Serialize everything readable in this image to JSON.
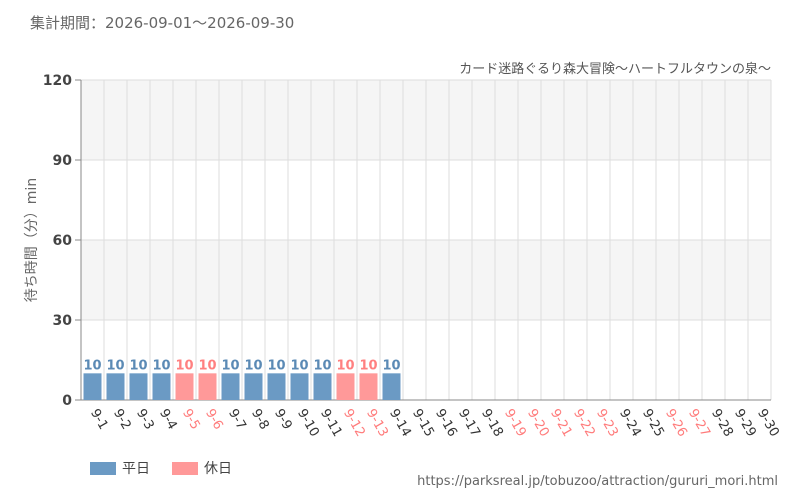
{
  "period_label": "集計期間：2026-09-01～2026-09-30",
  "source_url": "https://parksreal.jp/tobuzoo/attraction/gururi_mori.html",
  "legend": [
    {
      "label": "平日",
      "color": "#6b9ac4"
    },
    {
      "label": "休日",
      "color": "#ff9999"
    }
  ],
  "colors": {
    "weekday_bar": "#6b9ac4",
    "holiday_bar": "#ff9999",
    "weekday_text": "#333333",
    "holiday_text": "#ff7b7b",
    "weekday_value_label": "#5b8ab5",
    "holiday_value_label": "#ff8080",
    "band": "#f5f5f5",
    "grid": "#dddddd"
  },
  "chart_data": {
    "type": "bar",
    "title": "カード迷路ぐるり森大冒険～ハートフルタウンの泉～",
    "xlabel": "",
    "ylabel": "待ち時間（分）min",
    "ylim": [
      0,
      120
    ],
    "yticks": [
      0,
      30,
      60,
      90,
      120
    ],
    "grid": true,
    "legend_position": "bottom-left",
    "categories": [
      "9-1",
      "9-2",
      "9-3",
      "9-4",
      "9-5",
      "9-6",
      "9-7",
      "9-8",
      "9-9",
      "9-10",
      "9-11",
      "9-12",
      "9-13",
      "9-14",
      "9-15",
      "9-16",
      "9-17",
      "9-18",
      "9-19",
      "9-20",
      "9-21",
      "9-22",
      "9-23",
      "9-24",
      "9-25",
      "9-26",
      "9-27",
      "9-28",
      "9-29",
      "9-30"
    ],
    "day_type": [
      "平日",
      "平日",
      "平日",
      "平日",
      "休日",
      "休日",
      "平日",
      "平日",
      "平日",
      "平日",
      "平日",
      "休日",
      "休日",
      "平日",
      "平日",
      "平日",
      "平日",
      "平日",
      "休日",
      "休日",
      "休日",
      "休日",
      "休日",
      "平日",
      "平日",
      "休日",
      "休日",
      "平日",
      "平日",
      "平日"
    ],
    "values": [
      10,
      10,
      10,
      10,
      10,
      10,
      10,
      10,
      10,
      10,
      10,
      10,
      10,
      10,
      null,
      null,
      null,
      null,
      null,
      null,
      null,
      null,
      null,
      null,
      null,
      null,
      null,
      null,
      null,
      null
    ]
  }
}
